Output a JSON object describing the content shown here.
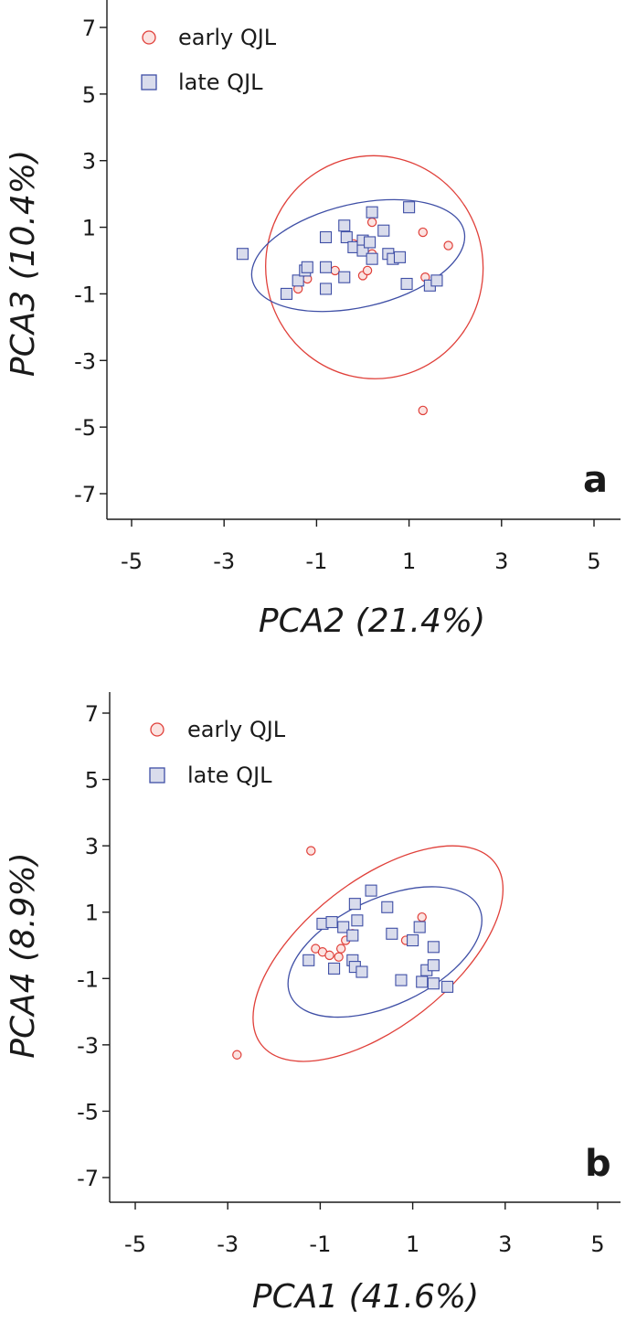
{
  "colors": {
    "early": "#e0403a",
    "late": "#3f4fa6",
    "late_fill": "#d9dcec",
    "axis": "#1a1a1a"
  },
  "legend": {
    "early_label": "early QJL",
    "late_label": "late QJL",
    "early_icon": "circle-marker",
    "late_icon": "square-marker"
  },
  "chart_data": [
    {
      "type": "scatter",
      "panel_label": "a",
      "xlabel": "PCA2 (21.4%)",
      "ylabel": "PCA3 (10.4%)",
      "xlim": [
        -5.6,
        5.6
      ],
      "ylim": [
        -8.2,
        7.6
      ],
      "xticks": [
        -5,
        -3,
        -1,
        1,
        3,
        5
      ],
      "yticks": [
        7,
        5,
        3,
        1,
        -1,
        -3,
        -5,
        -7
      ],
      "legend_position": "top-left",
      "grid": false,
      "series": [
        {
          "name": "early QJL",
          "marker": "circle",
          "points": [
            [
              -1.4,
              -0.85
            ],
            [
              -1.2,
              -0.55
            ],
            [
              -0.6,
              -0.3
            ],
            [
              -0.2,
              0.5
            ],
            [
              0.0,
              -0.45
            ],
            [
              0.1,
              -0.3
            ],
            [
              0.2,
              0.2
            ],
            [
              0.2,
              1.15
            ],
            [
              1.3,
              0.85
            ],
            [
              1.85,
              0.45
            ],
            [
              1.35,
              -0.5
            ],
            [
              1.3,
              -4.5
            ]
          ]
        },
        {
          "name": "late QJL",
          "marker": "square",
          "points": [
            [
              -2.6,
              0.2
            ],
            [
              -1.65,
              -1.0
            ],
            [
              -1.4,
              -0.6
            ],
            [
              -1.25,
              -0.3
            ],
            [
              -1.2,
              -0.2
            ],
            [
              -0.8,
              0.7
            ],
            [
              -0.8,
              -0.2
            ],
            [
              -0.8,
              -0.85
            ],
            [
              -0.4,
              1.05
            ],
            [
              -0.35,
              0.7
            ],
            [
              -0.4,
              -0.5
            ],
            [
              -0.2,
              0.4
            ],
            [
              0.0,
              0.6
            ],
            [
              0.0,
              0.3
            ],
            [
              0.15,
              0.55
            ],
            [
              0.2,
              1.45
            ],
            [
              0.2,
              0.05
            ],
            [
              0.45,
              0.9
            ],
            [
              0.55,
              0.2
            ],
            [
              0.65,
              0.05
            ],
            [
              0.8,
              0.1
            ],
            [
              0.95,
              -0.7
            ],
            [
              1.0,
              1.6
            ],
            [
              1.45,
              -0.75
            ],
            [
              1.6,
              -0.6
            ]
          ]
        }
      ],
      "ellipses": [
        {
          "series": "early QJL",
          "center": [
            0.25,
            -0.2
          ],
          "rx": 2.35,
          "ry": 3.35,
          "angle": -8
        },
        {
          "series": "late QJL",
          "center": [
            -0.1,
            0.15
          ],
          "rx": 2.35,
          "ry": 1.55,
          "angle": -13
        }
      ]
    },
    {
      "type": "scatter",
      "panel_label": "b",
      "xlabel": "PCA1 (41.6%)",
      "ylabel": "PCA4 (8.9%)",
      "xlim": [
        -5.6,
        5.6
      ],
      "ylim": [
        -8.2,
        7.6
      ],
      "xticks": [
        -5,
        -3,
        -1,
        1,
        3,
        5
      ],
      "yticks": [
        7,
        5,
        3,
        1,
        -1,
        -3,
        -5,
        -7
      ],
      "legend_position": "top-left",
      "grid": false,
      "series": [
        {
          "name": "early QJL",
          "marker": "circle",
          "points": [
            [
              -1.2,
              2.85
            ],
            [
              -2.8,
              -3.3
            ],
            [
              -1.1,
              -0.1
            ],
            [
              -0.95,
              -0.2
            ],
            [
              -0.8,
              -0.3
            ],
            [
              -0.6,
              -0.35
            ],
            [
              -0.55,
              -0.1
            ],
            [
              -0.45,
              0.15
            ],
            [
              -0.3,
              0.35
            ],
            [
              0.85,
              0.15
            ],
            [
              1.2,
              0.85
            ]
          ]
        },
        {
          "name": "late QJL",
          "marker": "square",
          "points": [
            [
              -1.25,
              -0.45
            ],
            [
              -0.95,
              0.65
            ],
            [
              -0.75,
              0.7
            ],
            [
              -0.5,
              0.55
            ],
            [
              -0.7,
              -0.7
            ],
            [
              -0.3,
              0.3
            ],
            [
              -0.2,
              0.75
            ],
            [
              -0.25,
              1.25
            ],
            [
              -0.3,
              -0.45
            ],
            [
              -0.25,
              -0.65
            ],
            [
              -0.1,
              -0.8
            ],
            [
              0.1,
              1.65
            ],
            [
              0.45,
              1.15
            ],
            [
              0.55,
              0.35
            ],
            [
              0.75,
              -1.05
            ],
            [
              1.0,
              0.15
            ],
            [
              1.15,
              0.55
            ],
            [
              1.2,
              -1.1
            ],
            [
              1.3,
              -0.75
            ],
            [
              1.45,
              -0.05
            ],
            [
              1.45,
              -0.6
            ],
            [
              1.45,
              -1.15
            ],
            [
              1.75,
              -1.25
            ]
          ]
        }
      ],
      "ellipses": [
        {
          "series": "early QJL",
          "center": [
            0.25,
            -0.25
          ],
          "rx": 3.2,
          "ry": 2.2,
          "angle": -38
        },
        {
          "series": "late QJL",
          "center": [
            0.4,
            -0.2
          ],
          "rx": 2.25,
          "ry": 1.6,
          "angle": -25
        }
      ]
    }
  ]
}
